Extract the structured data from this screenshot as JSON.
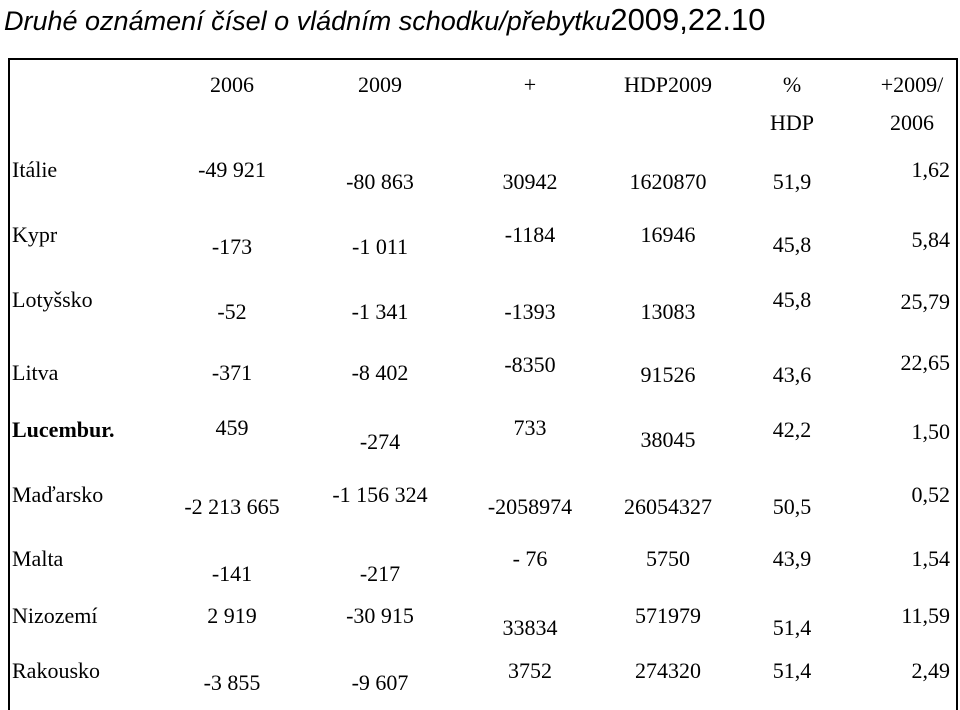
{
  "title": {
    "main": "Druhé oznámení čísel o vládním schodku/přebytku",
    "date": "2009,22.10"
  },
  "table": {
    "header": [
      [
        "2006"
      ],
      [
        "2009"
      ],
      [
        "+"
      ],
      [
        "HDP2009"
      ],
      [
        "%",
        "HDP"
      ],
      [
        "+2009/",
        "2006"
      ]
    ],
    "rows": [
      [
        "Itálie",
        "-49 921",
        "-80 863",
        "30942",
        "1620870",
        "51,9",
        "1,62"
      ],
      [
        "Kypr",
        "-173",
        "-1 011",
        "-1184",
        "16946",
        "45,8",
        "5,84"
      ],
      [
        "Lotyšsko",
        "-52",
        "-1 341",
        "-1393",
        "13083",
        "45,8",
        "25,79"
      ],
      [
        "Litva",
        "-371",
        "-8 402",
        "-8350",
        "91526",
        "43,6",
        "22,65"
      ],
      [
        "Lucembur.",
        "459",
        "-274",
        "733",
        "38045",
        "42,2",
        "1,50"
      ],
      [
        "Maďarsko",
        "-2 213 665",
        "-1 156 324",
        "-2058974",
        "26054327",
        "50,5",
        "0,52"
      ],
      [
        "Malta",
        "-141",
        "-217",
        "- 76",
        "5750",
        "43,9",
        "1,54"
      ],
      [
        "Nizozemí",
        "2 919",
        "-30 915",
        "33834",
        "571979",
        "51,4",
        "11,59"
      ],
      [
        "Rakousko",
        "-3 855",
        "-9 607",
        "3752",
        "274320",
        "51,4",
        "2,49"
      ]
    ]
  }
}
